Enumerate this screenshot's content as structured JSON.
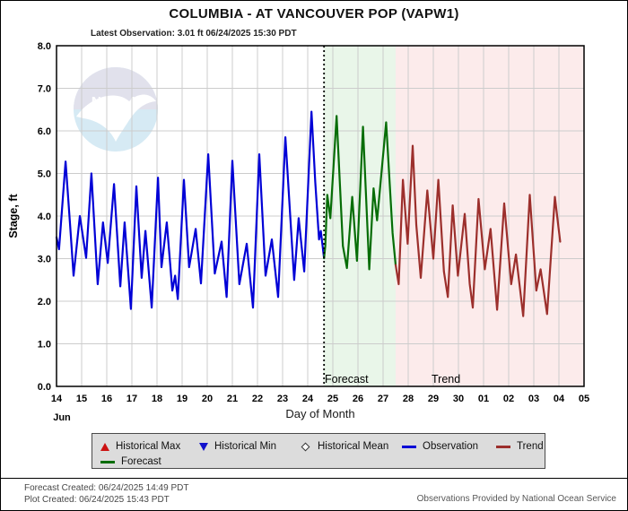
{
  "header": {
    "title": "COLUMBIA - AT VANCOUVER POP  (VAPW1)",
    "subtitle": "Latest Observation: 3.01 ft 06/24/2025 15:30 PDT"
  },
  "watermark": {
    "text": "NOAA",
    "top_color": "#dcdce9",
    "bottom_color": "#cfe7f3"
  },
  "chart_data": {
    "type": "line",
    "xlabel": "Day of Month",
    "ylabel": "Stage, ft",
    "month_label": "Jun",
    "x_domain": [
      14,
      35
    ],
    "ylim": [
      0,
      8
    ],
    "grid": true,
    "grid_color": "#cccccc",
    "y_tick_labels": [
      "0.0",
      "1.0",
      "2.0",
      "3.0",
      "4.0",
      "5.0",
      "6.0",
      "7.0",
      "8.0"
    ],
    "x_ticks": [
      {
        "day": 14,
        "label": "14"
      },
      {
        "day": 15,
        "label": "15"
      },
      {
        "day": 16,
        "label": "16"
      },
      {
        "day": 17,
        "label": "17"
      },
      {
        "day": 18,
        "label": "18"
      },
      {
        "day": 19,
        "label": "19"
      },
      {
        "day": 20,
        "label": "20"
      },
      {
        "day": 21,
        "label": "21"
      },
      {
        "day": 22,
        "label": "22"
      },
      {
        "day": 23,
        "label": "23"
      },
      {
        "day": 24,
        "label": "24"
      },
      {
        "day": 25,
        "label": "25"
      },
      {
        "day": 26,
        "label": "26"
      },
      {
        "day": 27,
        "label": "27"
      },
      {
        "day": 28,
        "label": "28"
      },
      {
        "day": 29,
        "label": "29"
      },
      {
        "day": 30,
        "label": "30"
      },
      {
        "day": 31,
        "label": "01"
      },
      {
        "day": 32,
        "label": "02"
      },
      {
        "day": 33,
        "label": "03"
      },
      {
        "day": 34,
        "label": "04"
      },
      {
        "day": 35,
        "label": "05"
      }
    ],
    "current_time_day": 24.65,
    "regions": [
      {
        "name": "forecast-region",
        "label": "Forecast",
        "start": 24.62,
        "end": 27.5,
        "fill": "#e9f6e9",
        "label_day": 24.68
      },
      {
        "name": "trend-region",
        "label": "Trend",
        "start": 27.5,
        "end": 35,
        "fill": "#fcebeb",
        "label_day": 28.93
      }
    ],
    "series": [
      {
        "name": "Observation",
        "color": "#0101d6",
        "width": 2.2,
        "points": [
          [
            14,
            3.5
          ],
          [
            14.1,
            3.22
          ],
          [
            14.36,
            5.28
          ],
          [
            14.54,
            3.8
          ],
          [
            14.68,
            2.6
          ],
          [
            14.93,
            4.0
          ],
          [
            15.18,
            3.02
          ],
          [
            15.39,
            5.0
          ],
          [
            15.64,
            2.4
          ],
          [
            15.85,
            3.85
          ],
          [
            16.04,
            2.9
          ],
          [
            16.29,
            4.75
          ],
          [
            16.54,
            2.35
          ],
          [
            16.71,
            3.85
          ],
          [
            16.96,
            1.82
          ],
          [
            17.18,
            4.7
          ],
          [
            17.39,
            2.55
          ],
          [
            17.54,
            3.65
          ],
          [
            17.79,
            1.85
          ],
          [
            18.04,
            4.9
          ],
          [
            18.18,
            2.8
          ],
          [
            18.39,
            3.85
          ],
          [
            18.61,
            2.25
          ],
          [
            18.72,
            2.6
          ],
          [
            18.83,
            2.05
          ],
          [
            19.07,
            4.85
          ],
          [
            19.28,
            2.8
          ],
          [
            19.54,
            3.7
          ],
          [
            19.75,
            2.42
          ],
          [
            20.04,
            5.45
          ],
          [
            20.3,
            2.65
          ],
          [
            20.57,
            3.4
          ],
          [
            20.77,
            2.1
          ],
          [
            21,
            5.3
          ],
          [
            21.28,
            2.4
          ],
          [
            21.57,
            3.35
          ],
          [
            21.82,
            1.85
          ],
          [
            22.07,
            5.45
          ],
          [
            22.32,
            2.6
          ],
          [
            22.57,
            3.45
          ],
          [
            22.82,
            2.1
          ],
          [
            23.11,
            5.85
          ],
          [
            23.46,
            2.5
          ],
          [
            23.64,
            3.95
          ],
          [
            23.86,
            2.7
          ],
          [
            24.15,
            6.45
          ],
          [
            24.3,
            4.8
          ],
          [
            24.45,
            3.45
          ],
          [
            24.52,
            3.65
          ],
          [
            24.65,
            3.01
          ]
        ]
      },
      {
        "name": "Forecast",
        "color": "#076d07",
        "width": 2.2,
        "points": [
          [
            24.65,
            3.01
          ],
          [
            24.7,
            3.3
          ],
          [
            24.78,
            4.5
          ],
          [
            24.9,
            3.95
          ],
          [
            25.15,
            6.35
          ],
          [
            25.4,
            3.3
          ],
          [
            25.56,
            2.78
          ],
          [
            25.77,
            4.45
          ],
          [
            25.96,
            2.95
          ],
          [
            26.2,
            6.1
          ],
          [
            26.45,
            2.75
          ],
          [
            26.62,
            4.65
          ],
          [
            26.76,
            3.9
          ],
          [
            27.12,
            6.2
          ],
          [
            27.38,
            3.6
          ],
          [
            27.5,
            2.85
          ]
        ]
      },
      {
        "name": "Trend",
        "color": "#9c2f2c",
        "width": 2.2,
        "points": [
          [
            27.5,
            2.85
          ],
          [
            27.62,
            2.4
          ],
          [
            27.79,
            4.85
          ],
          [
            27.98,
            3.35
          ],
          [
            28.18,
            5.65
          ],
          [
            28.32,
            3.8
          ],
          [
            28.5,
            2.55
          ],
          [
            28.76,
            4.6
          ],
          [
            29,
            3.0
          ],
          [
            29.2,
            4.85
          ],
          [
            29.42,
            2.7
          ],
          [
            29.58,
            2.1
          ],
          [
            29.77,
            4.25
          ],
          [
            29.98,
            2.6
          ],
          [
            30.25,
            4.05
          ],
          [
            30.45,
            2.4
          ],
          [
            30.57,
            1.85
          ],
          [
            30.8,
            4.4
          ],
          [
            31.05,
            2.75
          ],
          [
            31.28,
            3.7
          ],
          [
            31.54,
            1.8
          ],
          [
            31.82,
            4.3
          ],
          [
            32.1,
            2.4
          ],
          [
            32.29,
            3.1
          ],
          [
            32.58,
            1.65
          ],
          [
            32.84,
            4.5
          ],
          [
            33.1,
            2.25
          ],
          [
            33.27,
            2.75
          ],
          [
            33.53,
            1.7
          ],
          [
            33.84,
            4.45
          ],
          [
            34.05,
            3.4
          ]
        ]
      }
    ]
  },
  "legend": {
    "items": [
      {
        "symbol": "triangle-up",
        "color": "#cc1111",
        "label": "Historical Max"
      },
      {
        "symbol": "triangle-down",
        "color": "#1111cc",
        "label": "Historical Min"
      },
      {
        "symbol": "diamond",
        "color": "#ffffff",
        "label": "Historical Mean"
      },
      {
        "symbol": "line",
        "color": "#0101d6",
        "label": "Observation"
      },
      {
        "symbol": "line",
        "color": "#9c2f2c",
        "label": "Trend"
      },
      {
        "symbol": "line",
        "color": "#076d07",
        "label": "Forecast"
      }
    ]
  },
  "footer": {
    "line1": "Forecast Created: 06/24/2025 14:49 PDT",
    "line2": "Plot Created: 06/24/2025 15:43 PDT",
    "right": "Observations Provided by National Ocean Service"
  }
}
